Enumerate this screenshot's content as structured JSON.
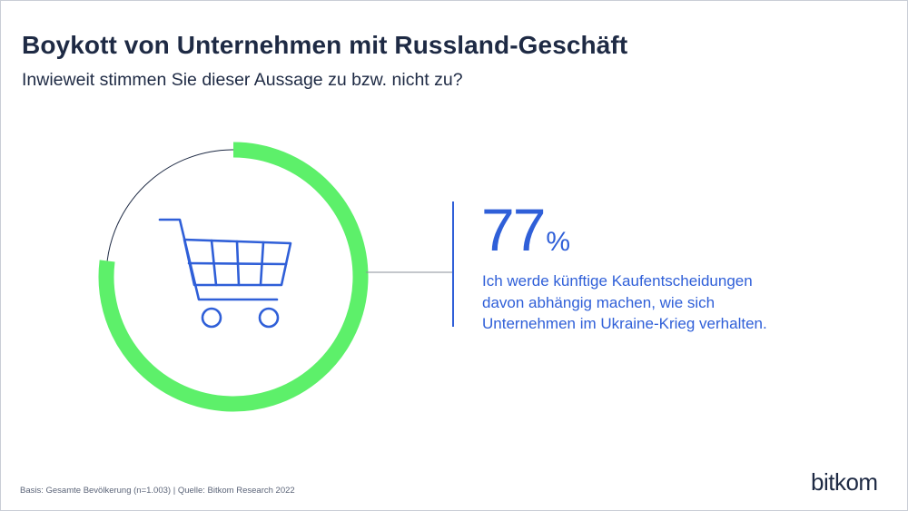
{
  "header": {
    "title": "Boykott von Unternehmen mit Russland-Geschäft",
    "subtitle": "Inwieweit stimmen Sie dieser Aussage zu bzw. nicht zu?"
  },
  "chart_data": {
    "type": "donut",
    "value": 77,
    "max": 100,
    "value_label": "77",
    "unit": "%",
    "description_lines": [
      "Ich werde künftige Kaufentscheidungen",
      "davon abhängig machen, wie sich",
      "Unternehmen im Ukraine-Krieg verhalten."
    ],
    "center_icon": "shopping-cart-icon"
  },
  "colors": {
    "accent_green": "#5df06a",
    "accent_blue": "#2f5fd8",
    "text_dark": "#1e2a44",
    "rest_stroke": "#1e2a44"
  },
  "footer": {
    "source": "Basis: Gesamte Bevölkerung (n=1.003) | Quelle: Bitkom Research 2022"
  },
  "brand": {
    "logo_text": "bitkom"
  }
}
